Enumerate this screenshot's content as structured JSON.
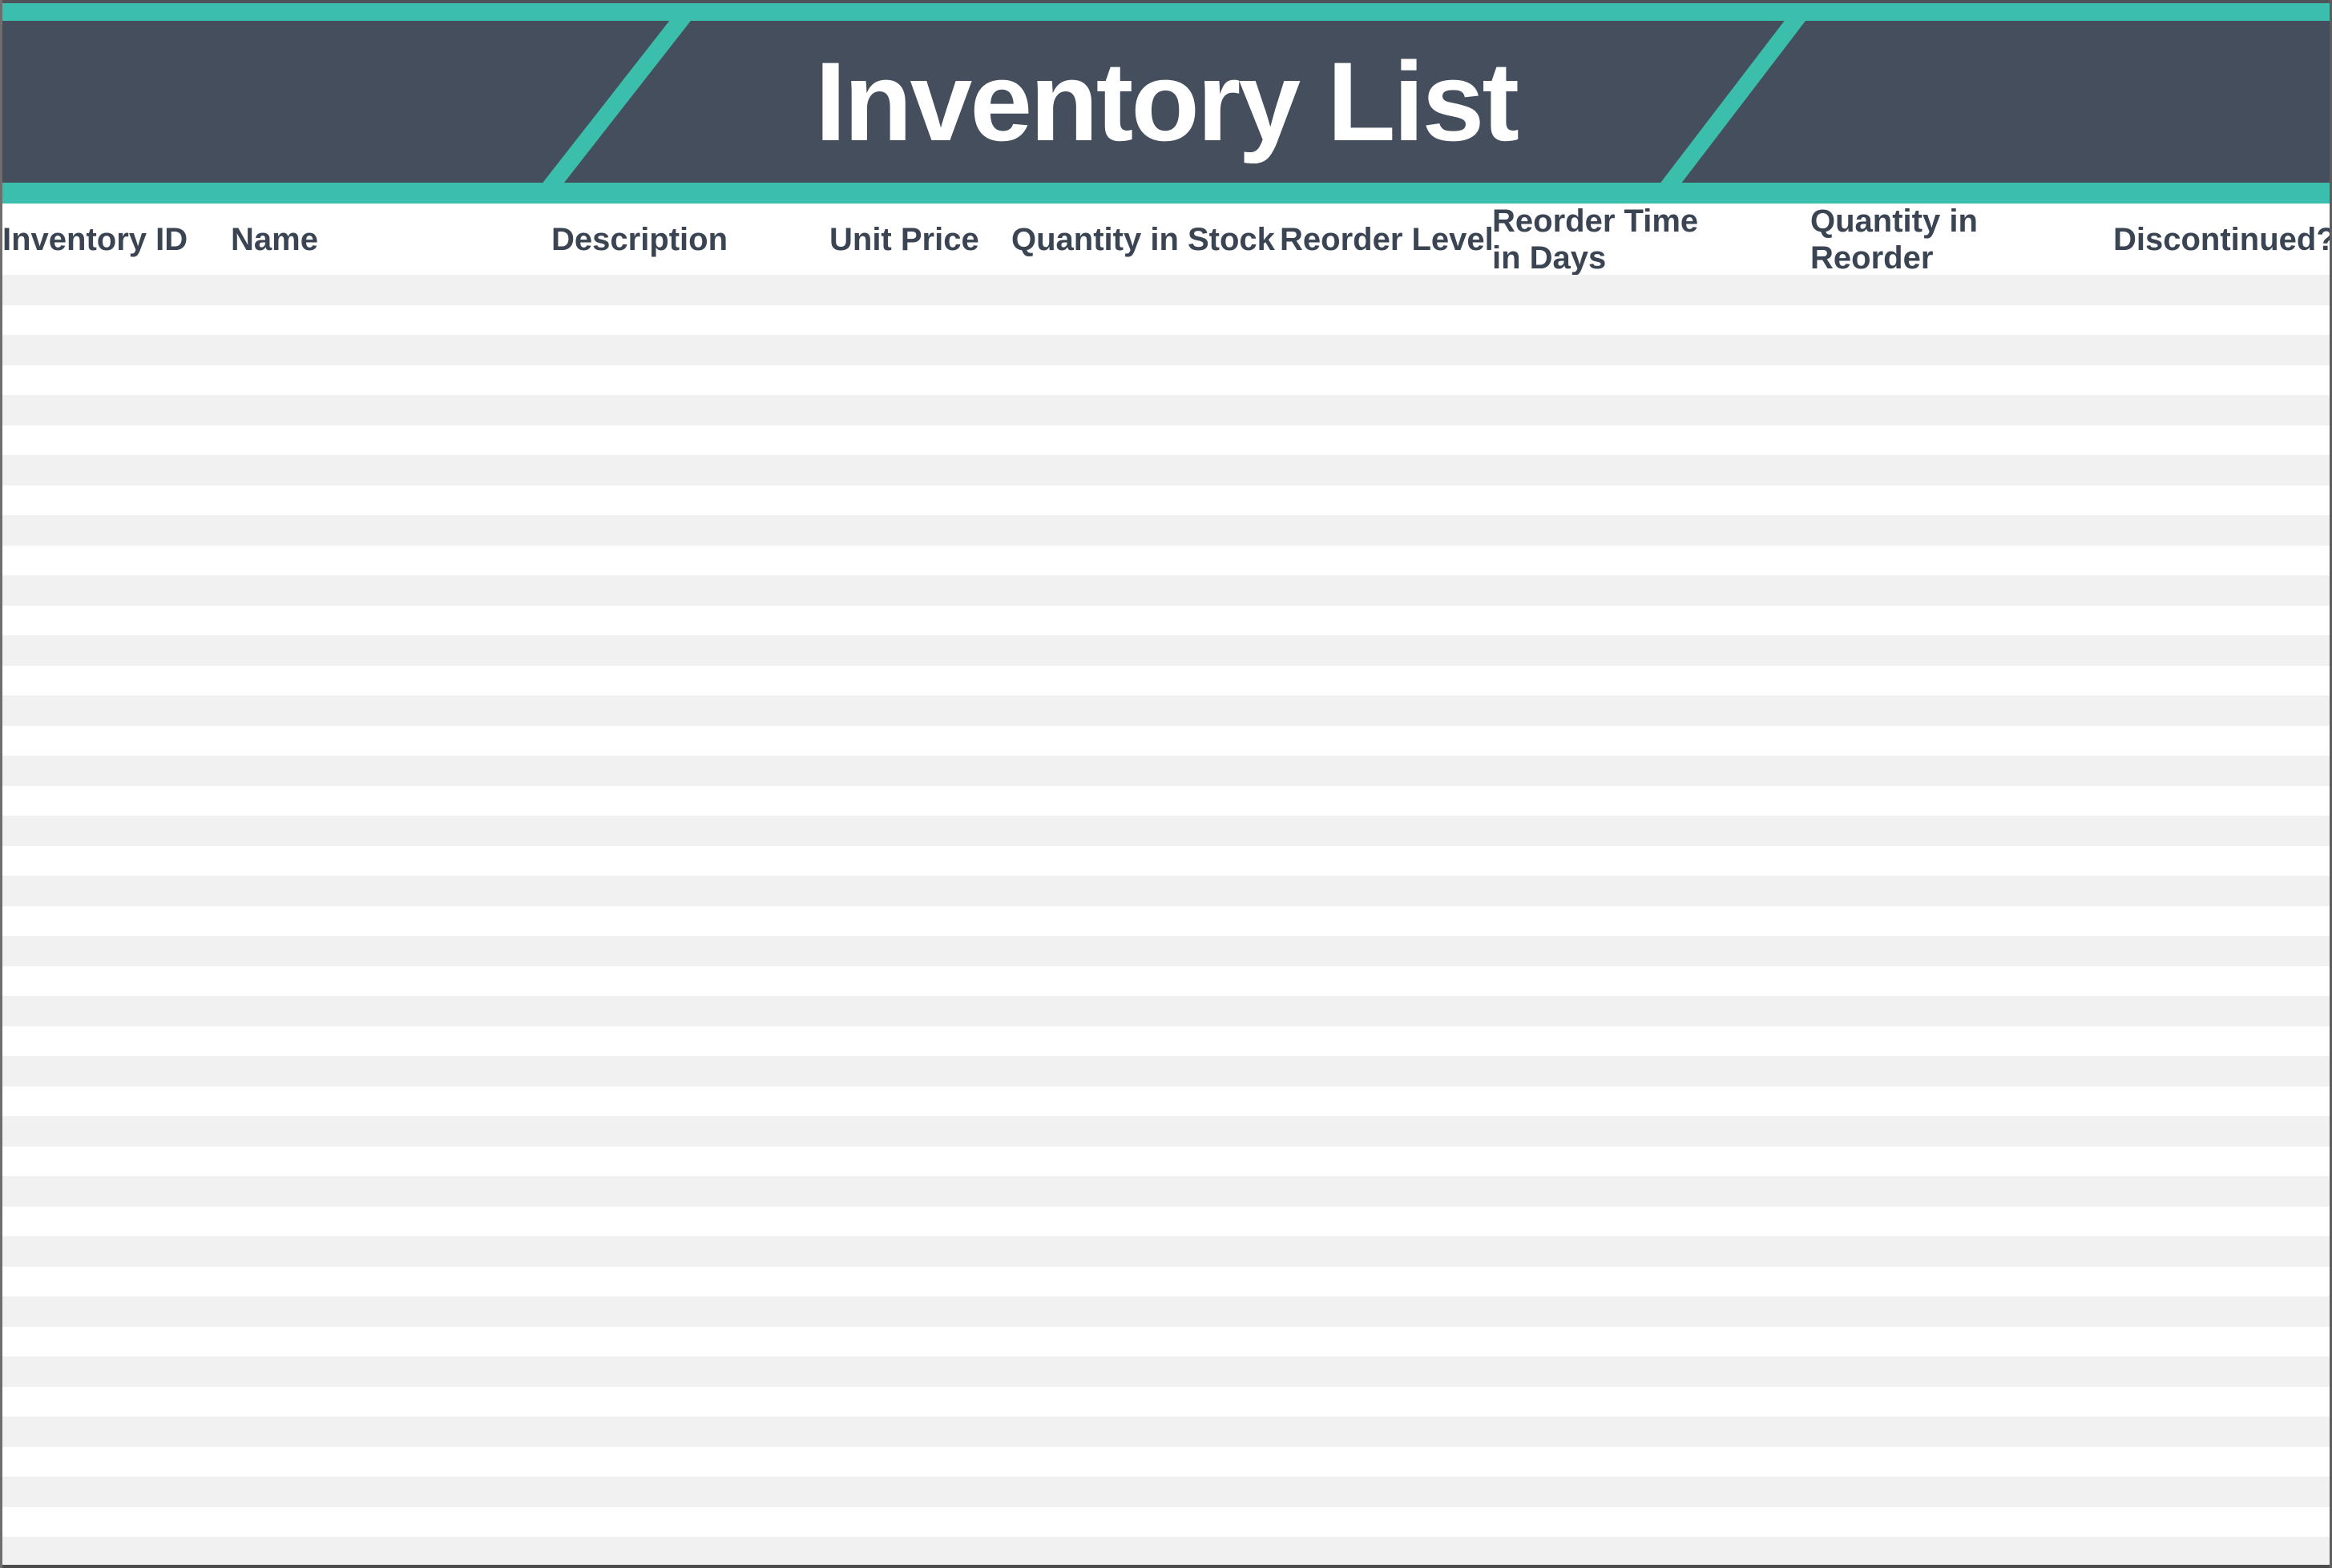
{
  "page": {
    "title": "Inventory List"
  },
  "theme": {
    "accent_teal": "#3CBEAC",
    "banner_dark": "#454E5C",
    "header_text": "#3B4452",
    "stripe_gray": "#F1F1F1",
    "row_white": "#FFFFFF"
  },
  "table": {
    "columns": [
      {
        "label": "Inventory ID"
      },
      {
        "label": "Name"
      },
      {
        "label": "Description"
      },
      {
        "label": "Unit Price"
      },
      {
        "label": "Quantity in Stock"
      },
      {
        "label": "Reorder Level"
      },
      {
        "label": "Reorder Time\nin Days"
      },
      {
        "label": "Quantity in\nReorder"
      },
      {
        "label": "Discontinued?"
      }
    ],
    "rows": [],
    "empty_row_count": 43
  }
}
